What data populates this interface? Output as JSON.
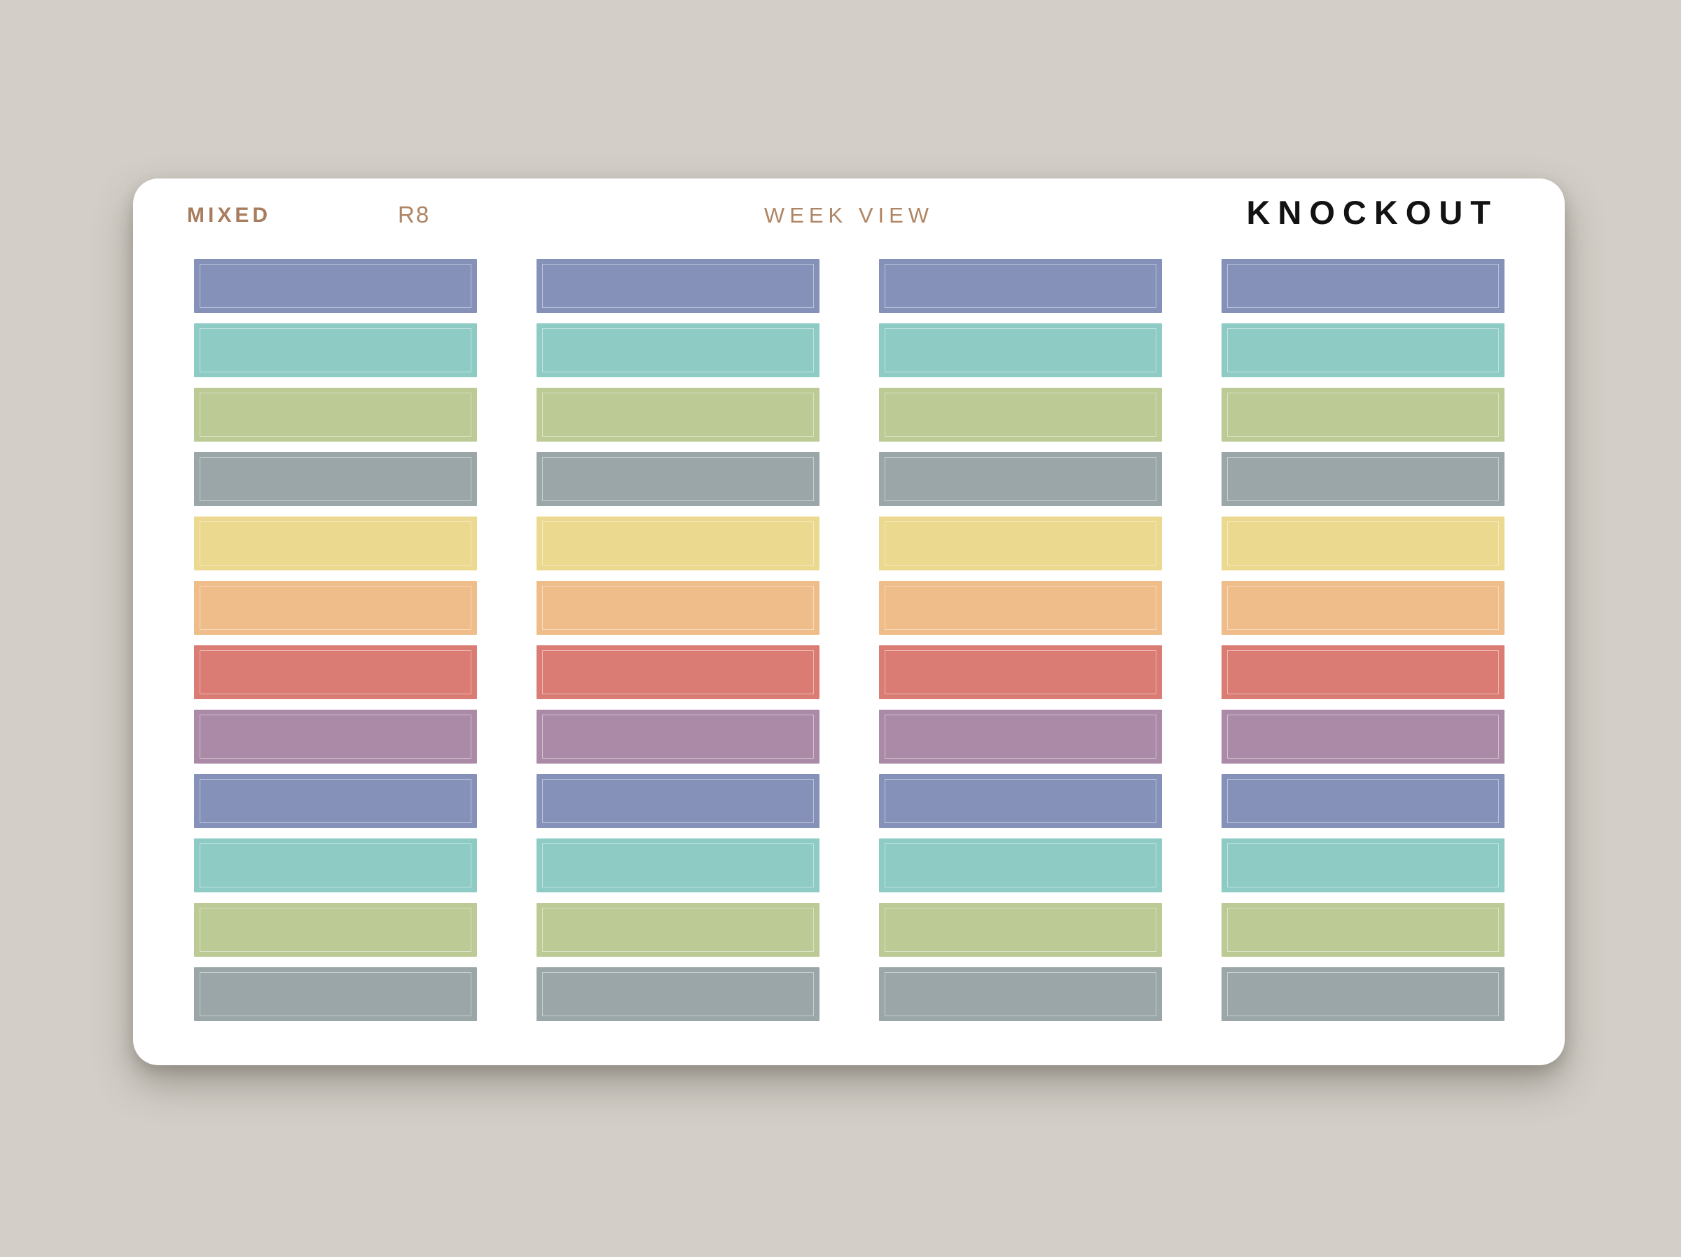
{
  "page": {
    "background_color": "#d3cec7"
  },
  "sheet": {
    "background_color": "#ffffff",
    "header": {
      "collection_label": "MIXED",
      "sku_label": "R8",
      "product_label": "WEEK VIEW",
      "brand_label": "KNOCKOUT",
      "accent_color": "#a87c5c",
      "brand_color": "#131313"
    },
    "grid": {
      "columns": 4,
      "rows": 12,
      "sticker_count": 48,
      "sticker_shape": "rectangle",
      "palette": [
        {
          "name": "periwinkle",
          "hex": "#8591b9"
        },
        {
          "name": "teal",
          "hex": "#8ecbc5"
        },
        {
          "name": "green",
          "hex": "#bcca95"
        },
        {
          "name": "slate-gray",
          "hex": "#9aa6a7"
        },
        {
          "name": "yellow",
          "hex": "#ebd990"
        },
        {
          "name": "orange",
          "hex": "#eebd89"
        },
        {
          "name": "coral",
          "hex": "#da7c74"
        },
        {
          "name": "mauve",
          "hex": "#aa8aa6"
        }
      ],
      "row_colors": [
        "periwinkle",
        "teal",
        "green",
        "slate-gray",
        "yellow",
        "orange",
        "coral",
        "mauve",
        "periwinkle",
        "teal",
        "green",
        "slate-gray"
      ]
    }
  }
}
